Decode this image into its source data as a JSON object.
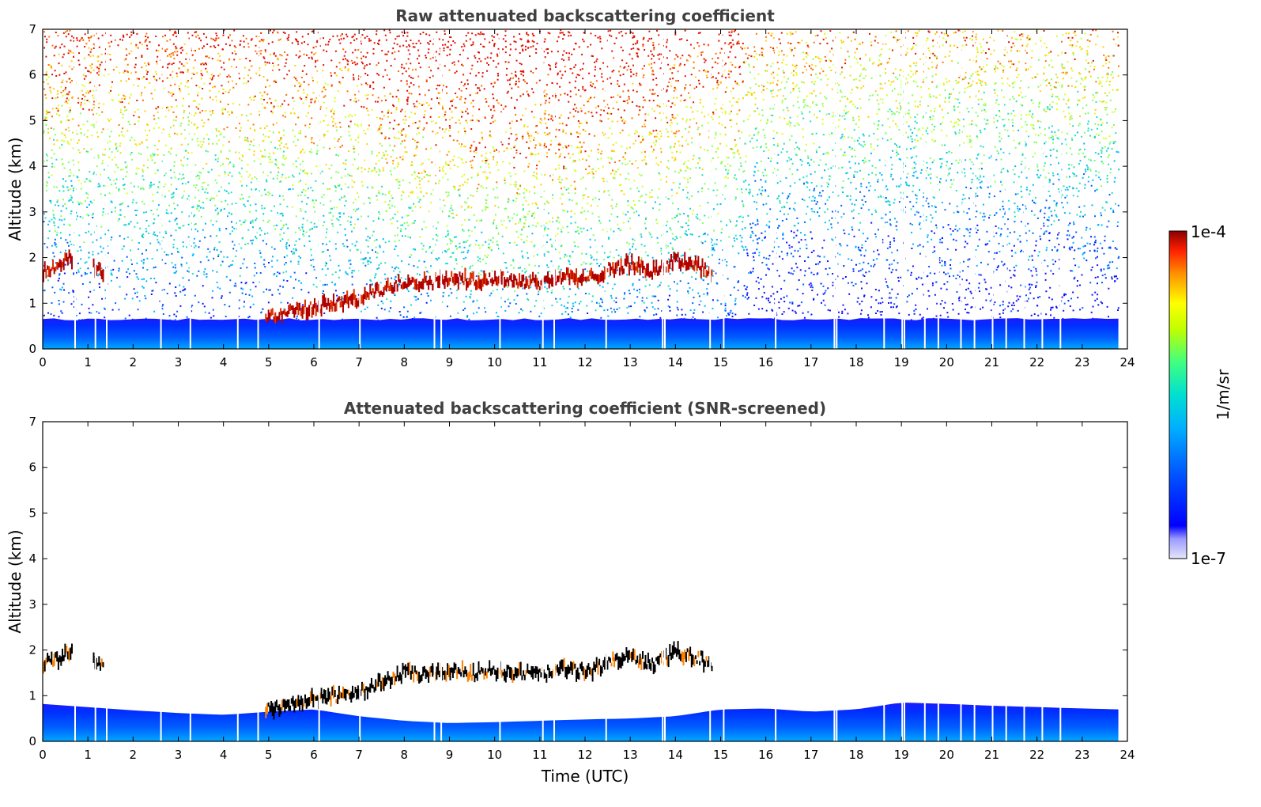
{
  "chart_data": [
    {
      "type": "heatmap",
      "title": "Raw attenuated backscattering coefficient",
      "xlabel": "",
      "ylabel": "Altitude (km)",
      "xlim": [
        0,
        24
      ],
      "ylim": [
        0,
        7
      ],
      "x_ticks": [
        "0",
        "1",
        "2",
        "3",
        "4",
        "5",
        "6",
        "7",
        "8",
        "9",
        "10",
        "11",
        "12",
        "13",
        "14",
        "15",
        "16",
        "17",
        "18",
        "19",
        "20",
        "21",
        "22",
        "23",
        "24"
      ],
      "y_ticks": [
        "0",
        "1",
        "2",
        "3",
        "4",
        "5",
        "6",
        "7"
      ],
      "data_end_time": 23.8,
      "boundary_layer_top_km": 0.65,
      "noise_present": true,
      "aerosol_layer": [
        [
          0.0,
          1.72
        ],
        [
          0.3,
          1.78
        ],
        [
          0.6,
          2.0
        ],
        [
          1.2,
          1.72
        ],
        [
          5.0,
          0.72
        ],
        [
          5.5,
          0.82
        ],
        [
          6.0,
          0.92
        ],
        [
          6.5,
          1.0
        ],
        [
          7.0,
          1.1
        ],
        [
          7.5,
          1.3
        ],
        [
          8.0,
          1.5
        ],
        [
          8.5,
          1.45
        ],
        [
          9.0,
          1.55
        ],
        [
          9.5,
          1.5
        ],
        [
          10.0,
          1.55
        ],
        [
          10.5,
          1.5
        ],
        [
          11.0,
          1.45
        ],
        [
          11.5,
          1.6
        ],
        [
          12.0,
          1.5
        ],
        [
          12.5,
          1.75
        ],
        [
          13.0,
          1.85
        ],
        [
          13.5,
          1.7
        ],
        [
          14.0,
          1.95
        ],
        [
          14.5,
          1.85
        ],
        [
          14.7,
          1.7
        ]
      ]
    },
    {
      "type": "heatmap",
      "title": "Attenuated backscattering coefficient (SNR-screened)",
      "xlabel": "Time (UTC)",
      "ylabel": "Altitude (km)",
      "xlim": [
        0,
        24
      ],
      "ylim": [
        0,
        7
      ],
      "x_ticks": [
        "0",
        "1",
        "2",
        "3",
        "4",
        "5",
        "6",
        "7",
        "8",
        "9",
        "10",
        "11",
        "12",
        "13",
        "14",
        "15",
        "16",
        "17",
        "18",
        "19",
        "20",
        "21",
        "22",
        "23",
        "24"
      ],
      "y_ticks": [
        "0",
        "1",
        "2",
        "3",
        "4",
        "5",
        "6",
        "7"
      ],
      "data_end_time": 23.8,
      "noise_present": false,
      "boundary_layer_top_km": [
        [
          0,
          0.82
        ],
        [
          1,
          0.75
        ],
        [
          2,
          0.68
        ],
        [
          3,
          0.62
        ],
        [
          4,
          0.58
        ],
        [
          5,
          0.65
        ],
        [
          6,
          0.7
        ],
        [
          7,
          0.55
        ],
        [
          8,
          0.45
        ],
        [
          9,
          0.4
        ],
        [
          10,
          0.42
        ],
        [
          11,
          0.45
        ],
        [
          12,
          0.48
        ],
        [
          13,
          0.5
        ],
        [
          14,
          0.55
        ],
        [
          15,
          0.7
        ],
        [
          16,
          0.72
        ],
        [
          17,
          0.65
        ],
        [
          18,
          0.7
        ],
        [
          19,
          0.85
        ],
        [
          20,
          0.82
        ],
        [
          21,
          0.78
        ],
        [
          22,
          0.75
        ],
        [
          23,
          0.72
        ],
        [
          23.8,
          0.7
        ]
      ],
      "aerosol_layer": [
        [
          0.0,
          1.72
        ],
        [
          0.3,
          1.78
        ],
        [
          0.6,
          2.0
        ],
        [
          1.2,
          1.72
        ],
        [
          5.0,
          0.72
        ],
        [
          5.5,
          0.82
        ],
        [
          6.0,
          0.92
        ],
        [
          6.5,
          1.0
        ],
        [
          7.0,
          1.1
        ],
        [
          7.5,
          1.3
        ],
        [
          8.0,
          1.5
        ],
        [
          8.5,
          1.45
        ],
        [
          9.0,
          1.55
        ],
        [
          9.5,
          1.5
        ],
        [
          10.0,
          1.55
        ],
        [
          10.5,
          1.5
        ],
        [
          11.0,
          1.45
        ],
        [
          11.5,
          1.6
        ],
        [
          12.0,
          1.5
        ],
        [
          12.5,
          1.75
        ],
        [
          13.0,
          1.85
        ],
        [
          13.5,
          1.7
        ],
        [
          14.0,
          1.95
        ],
        [
          14.5,
          1.85
        ],
        [
          14.7,
          1.7
        ]
      ]
    }
  ],
  "colorbar": {
    "label": "1/m/sr",
    "max_label": "1e-4",
    "min_label": "1e-7",
    "scale": "log",
    "colors": [
      "#e6e6fa",
      "#9b9bff",
      "#0000ff",
      "#0050ff",
      "#00a0ff",
      "#00e0e0",
      "#40ff80",
      "#c0ff00",
      "#ffff00",
      "#ff9000",
      "#ff2000",
      "#8b0000"
    ]
  }
}
